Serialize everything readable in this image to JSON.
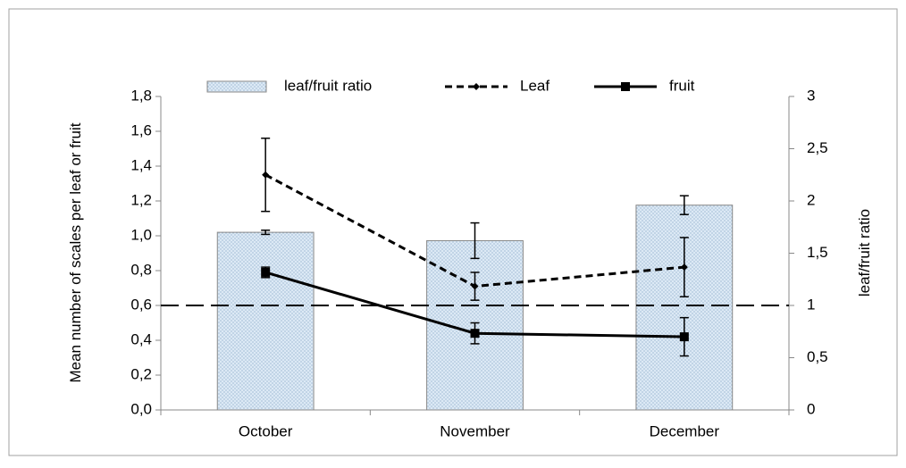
{
  "chart_data": {
    "type": "bar",
    "categories": [
      "October",
      "November",
      "December"
    ],
    "series": [
      {
        "name": "leaf/fruit ratio",
        "type": "bar",
        "axis": "y2",
        "color": "#dce9f5",
        "values": [
          1.7,
          1.62,
          1.96
        ],
        "errors": [
          0.02,
          0.17,
          0.09
        ]
      },
      {
        "name": "Leaf",
        "type": "line",
        "dash": true,
        "marker": "diamond",
        "color": "#000000",
        "values": [
          1.35,
          0.71,
          0.82
        ],
        "errors": [
          0.21,
          0.08,
          0.17
        ]
      },
      {
        "name": "fruit",
        "type": "line",
        "dash": false,
        "marker": "square",
        "color": "#000000",
        "values": [
          0.79,
          0.44,
          0.42
        ],
        "errors": [
          0.03,
          0.06,
          0.11
        ]
      }
    ],
    "y_label": "Mean number of scales per leaf or fruit",
    "y2_label": "leaf/fruit ratio",
    "ylim": [
      0,
      1.8
    ],
    "yticks": [
      {
        "value": 0,
        "label": "0,0"
      },
      {
        "value": 0.2,
        "label": "0,2"
      },
      {
        "value": 0.4,
        "label": "0,4"
      },
      {
        "value": 0.6,
        "label": "0,6"
      },
      {
        "value": 0.8,
        "label": "0,8"
      },
      {
        "value": 1.0,
        "label": "1,0"
      },
      {
        "value": 1.2,
        "label": "1,2"
      },
      {
        "value": 1.4,
        "label": "1,4"
      },
      {
        "value": 1.6,
        "label": "1,6"
      },
      {
        "value": 1.8,
        "label": "1,8"
      }
    ],
    "y2lim": [
      0,
      3
    ],
    "y2ticks": [
      0,
      {
        "value": 0.5,
        "label": "0,5"
      },
      1,
      {
        "value": 1.5,
        "label": "1,5"
      },
      2,
      {
        "value": 2.5,
        "label": "2,5"
      },
      3
    ],
    "reference_line": {
      "value": 1,
      "axis": "y2"
    },
    "legend": "top"
  }
}
